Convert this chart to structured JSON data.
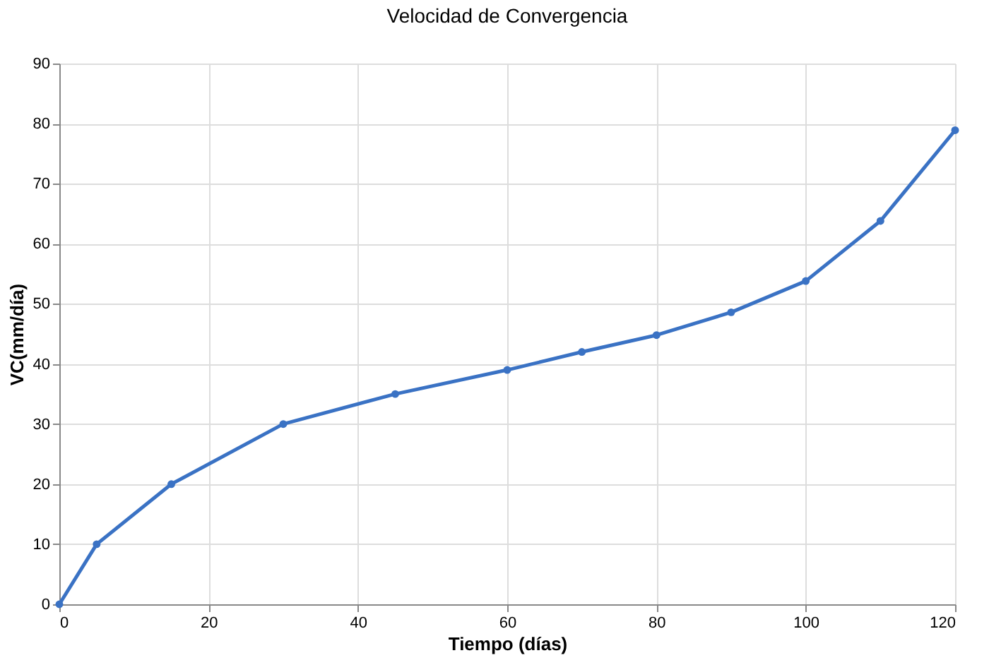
{
  "chart_data": {
    "type": "line",
    "title": "Velocidad de Convergencia",
    "xlabel": "Tiempo (días)",
    "ylabel": "VC(mm/día)",
    "x": [
      0,
      5,
      15,
      30,
      45,
      60,
      70,
      80,
      90,
      100,
      110,
      120
    ],
    "series": [
      {
        "color": "#3a72c4",
        "values": [
          0,
          10,
          20,
          30,
          35,
          39,
          42,
          44.8,
          48.6,
          53.8,
          63.8,
          78.9
        ]
      }
    ],
    "xlim": [
      0,
      120
    ],
    "xticks": [
      0,
      20,
      40,
      60,
      80,
      100,
      120
    ],
    "ylim": [
      0,
      90
    ],
    "yticks": [
      0,
      10,
      20,
      30,
      40,
      50,
      60,
      70,
      80,
      90
    ],
    "grid": true,
    "marker": "circle",
    "line_style": "solid"
  }
}
